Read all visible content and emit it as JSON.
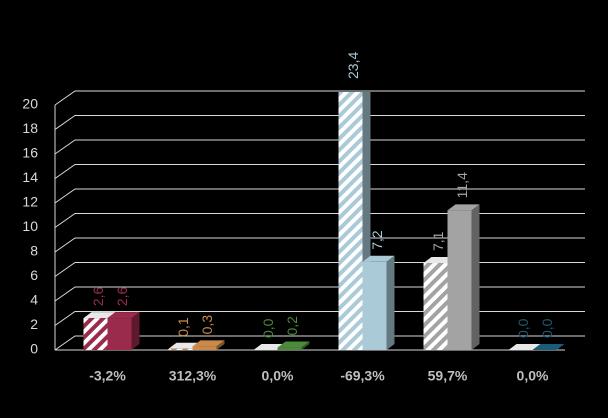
{
  "chart_data": {
    "type": "bar3d",
    "categories": [
      "-3,2%",
      "312,3%",
      "0,0%",
      "-69,3%",
      "59,7%",
      "0,0%"
    ],
    "colors": [
      "#9b2b4c",
      "#c98a4b",
      "#4d8a3c",
      "#a9cad6",
      "#a3a3a3",
      "#1d5c78"
    ],
    "series": [
      {
        "pattern": "hatched",
        "values": [
          2.6,
          0.1,
          0.0,
          23.4,
          7.1,
          0.0
        ],
        "value_labels": [
          "2,6",
          "0,1",
          "0,0",
          "23,4",
          "7,1",
          "0,0"
        ]
      },
      {
        "pattern": "solid",
        "values": [
          2.6,
          0.3,
          0.2,
          7.2,
          11.4,
          0.0
        ],
        "value_labels": [
          "2,6",
          "0,3",
          "0,2",
          "7,2",
          "11,4",
          "0,0"
        ]
      }
    ],
    "ylim": [
      0,
      20
    ],
    "yticks": [
      0,
      2,
      4,
      6,
      8,
      10,
      12,
      14,
      16,
      18,
      20
    ],
    "grid": true
  }
}
